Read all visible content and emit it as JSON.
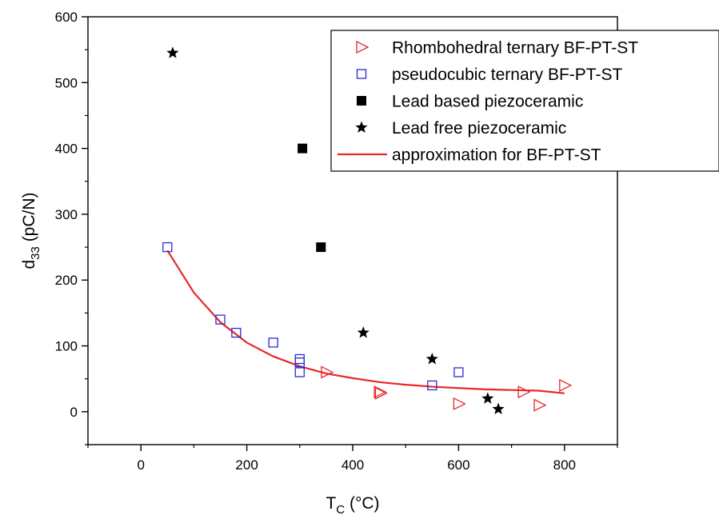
{
  "chart_data": {
    "type": "scatter",
    "xlabel": {
      "main": "T",
      "sub": "C",
      "rest": " (°C)"
    },
    "ylabel": {
      "main": "d",
      "sub": "33",
      "rest": " (pC/N)"
    },
    "xlim": [
      -100,
      900
    ],
    "ylim": [
      -50,
      600
    ],
    "x_ticks": [
      0,
      200,
      400,
      600,
      800
    ],
    "y_ticks": [
      0,
      100,
      200,
      300,
      400,
      500,
      600
    ],
    "x_tick_labels": [
      "0",
      "200",
      "400",
      "600",
      "800"
    ],
    "y_tick_labels": [
      "0",
      "100",
      "200",
      "300",
      "400",
      "500",
      "600"
    ],
    "legend_placement": "top-right",
    "grid": false,
    "series": [
      {
        "name": "Rhombohedral ternary BF-PT-ST",
        "marker": "triangle-right-open",
        "color": "#e8282a",
        "points": [
          [
            350,
            60
          ],
          [
            450,
            30
          ],
          [
            452,
            28
          ],
          [
            600,
            12
          ],
          [
            722,
            30
          ],
          [
            752,
            10
          ],
          [
            800,
            40
          ]
        ]
      },
      {
        "name": "pseudocubic ternary BF-PT-ST",
        "marker": "square-open",
        "color": "#2b2bd6",
        "points": [
          [
            50,
            250
          ],
          [
            150,
            140
          ],
          [
            180,
            120
          ],
          [
            250,
            105
          ],
          [
            300,
            80
          ],
          [
            300,
            75
          ],
          [
            300,
            60
          ],
          [
            550,
            40
          ],
          [
            600,
            60
          ]
        ]
      },
      {
        "name": "Lead based piezoceramic",
        "marker": "square-filled",
        "color": "#000000",
        "points": [
          [
            305,
            400
          ],
          [
            340,
            250
          ]
        ]
      },
      {
        "name": "Lead free piezoceramic",
        "marker": "star",
        "color": "#000000",
        "points": [
          [
            60,
            545
          ],
          [
            420,
            120
          ],
          [
            550,
            80
          ],
          [
            655,
            20
          ],
          [
            675,
            4
          ]
        ]
      },
      {
        "name": "approximation for BF-PT-ST",
        "type": "line",
        "color": "#e8282a",
        "points": [
          [
            50,
            245
          ],
          [
            100,
            181
          ],
          [
            150,
            136
          ],
          [
            200,
            105
          ],
          [
            250,
            84
          ],
          [
            300,
            69
          ],
          [
            350,
            58
          ],
          [
            400,
            51
          ],
          [
            450,
            45
          ],
          [
            500,
            41
          ],
          [
            550,
            38
          ],
          [
            600,
            36
          ],
          [
            650,
            34
          ],
          [
            700,
            33
          ],
          [
            750,
            32
          ],
          [
            800,
            28
          ]
        ]
      }
    ]
  }
}
